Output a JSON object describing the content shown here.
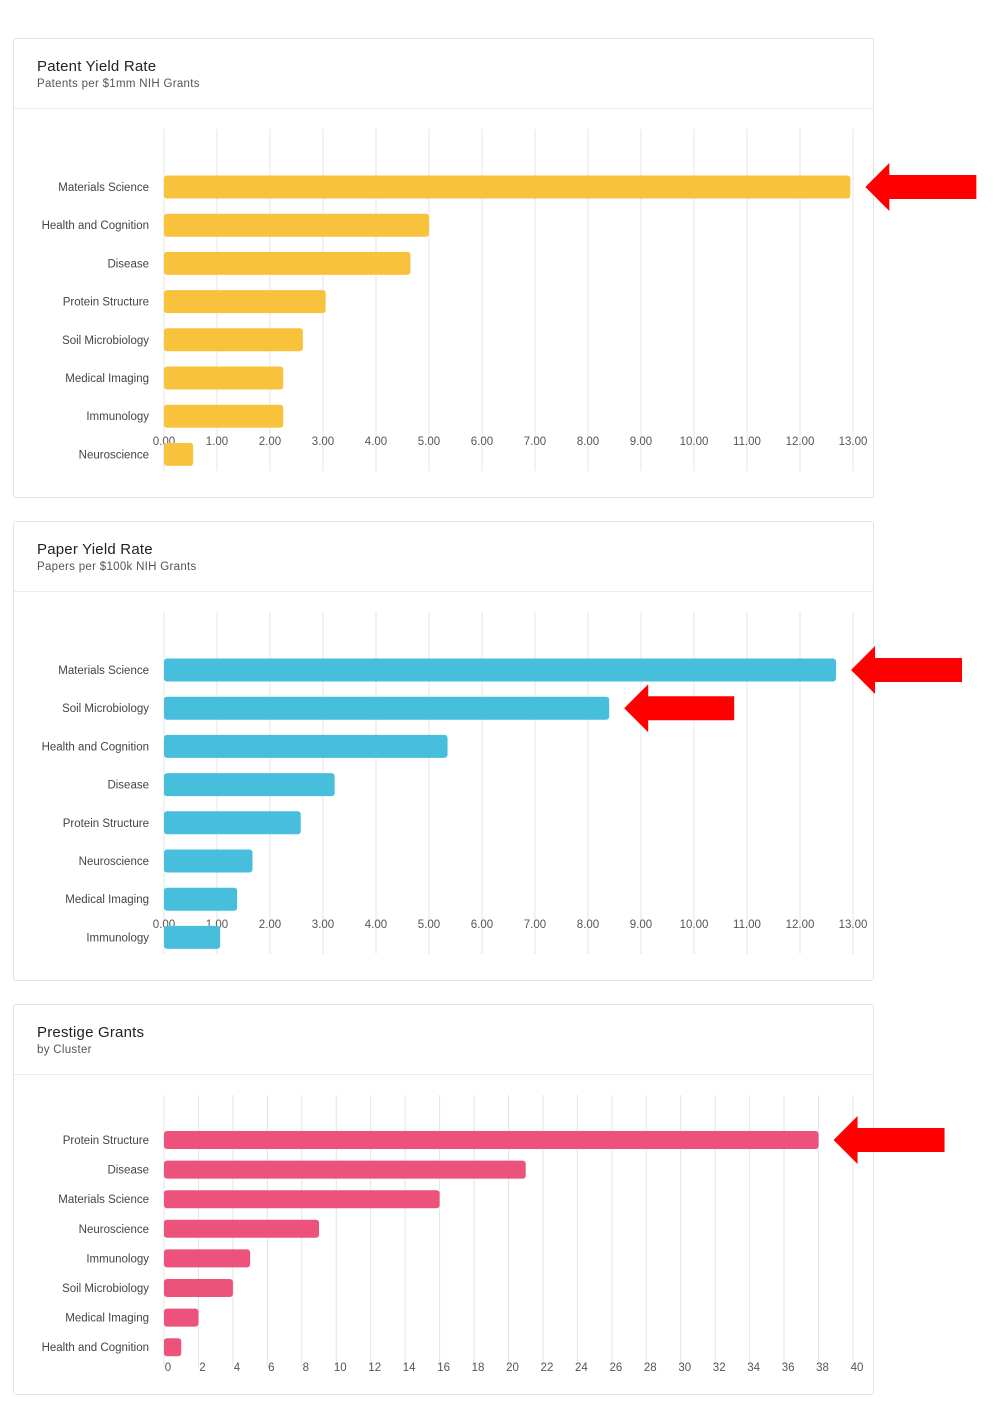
{
  "chart_data": [
    {
      "type": "bar",
      "orientation": "horizontal",
      "title": "Patent Yield Rate",
      "subtitle": "Patents per $1mm NIH Grants",
      "categories": [
        "Materials Science",
        "Health and Cognition",
        "Disease",
        "Protein Structure",
        "Soil Microbiology",
        "Medical Imaging",
        "Immunology",
        "Neuroscience"
      ],
      "values": [
        12.95,
        5.0,
        4.65,
        3.05,
        2.62,
        2.25,
        2.25,
        0.55
      ],
      "xticks": [
        "0.00",
        "1.00",
        "2.00",
        "3.00",
        "4.00",
        "5.00",
        "6.00",
        "7.00",
        "8.00",
        "9.00",
        "10.00",
        "11.00",
        "12.00",
        "13.00"
      ],
      "xlim": [
        0,
        13
      ],
      "grid": true,
      "color": "#f9c23c",
      "highlighted_categories": [
        "Materials Science"
      ]
    },
    {
      "type": "bar",
      "orientation": "horizontal",
      "title": "Paper Yield Rate",
      "subtitle": "Papers per $100k NIH Grants",
      "categories": [
        "Materials Science",
        "Soil Microbiology",
        "Health and Cognition",
        "Disease",
        "Protein Structure",
        "Neuroscience",
        "Medical Imaging",
        "Immunology"
      ],
      "values": [
        12.68,
        8.4,
        5.35,
        3.22,
        2.58,
        1.67,
        1.38,
        1.06
      ],
      "xticks": [
        "0.00",
        "1.00",
        "2.00",
        "3.00",
        "4.00",
        "5.00",
        "6.00",
        "7.00",
        "8.00",
        "9.00",
        "10.00",
        "11.00",
        "12.00",
        "13.00"
      ],
      "xlim": [
        0,
        13
      ],
      "grid": true,
      "color": "#47bfdc",
      "highlighted_categories": [
        "Materials Science",
        "Soil Microbiology"
      ]
    },
    {
      "type": "bar",
      "orientation": "horizontal",
      "title": "Prestige Grants",
      "subtitle": "by Cluster",
      "categories": [
        "Protein Structure",
        "Disease",
        "Materials Science",
        "Neuroscience",
        "Immunology",
        "Soil Microbiology",
        "Medical Imaging",
        "Health and Cognition"
      ],
      "values": [
        38,
        21,
        16,
        9,
        5,
        4,
        2,
        1
      ],
      "xticks": [
        "0",
        "2",
        "4",
        "6",
        "8",
        "10",
        "12",
        "14",
        "16",
        "18",
        "20",
        "22",
        "24",
        "26",
        "28",
        "30",
        "32",
        "34",
        "36",
        "38",
        "40"
      ],
      "xlim": [
        0,
        40
      ],
      "grid": true,
      "color": "#ec527b",
      "highlighted_categories": [
        "Protein Structure"
      ]
    }
  ],
  "annotation_color": "#fe0000"
}
